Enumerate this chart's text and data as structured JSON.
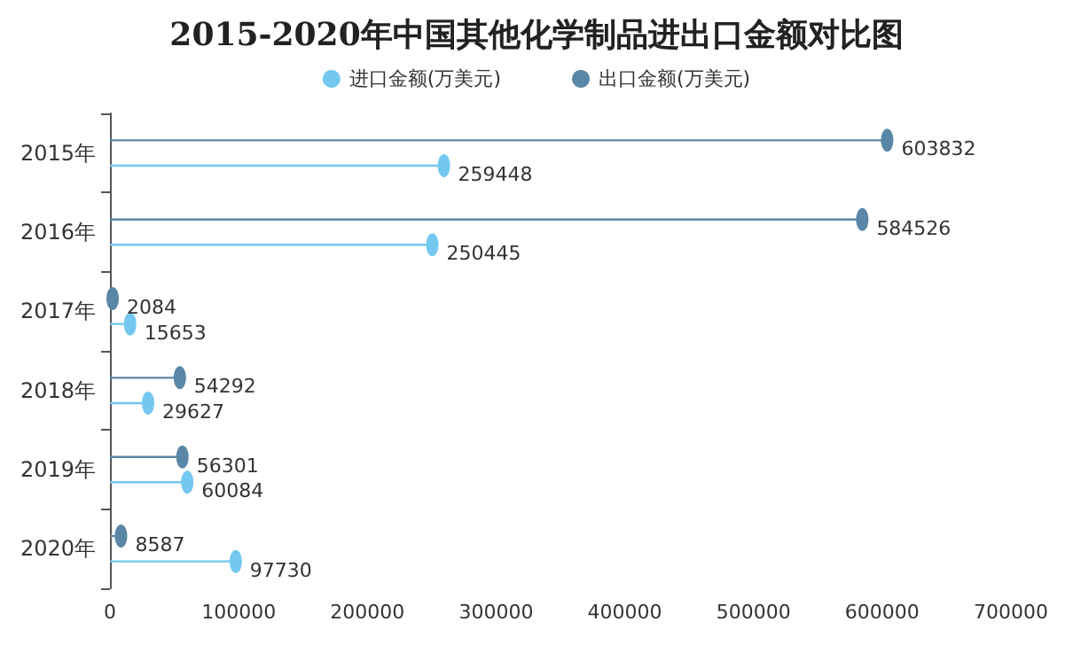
{
  "chart_data": {
    "type": "lollipop",
    "orientation": "horizontal",
    "title": "2015-2020年中国其他化学制品进出口金额对比图",
    "categories": [
      "2015年",
      "2016年",
      "2017年",
      "2018年",
      "2019年",
      "2020年"
    ],
    "series": [
      {
        "name": "进口金额(万美元)",
        "color": "#74c8f0",
        "values": [
          259448,
          250445,
          15653,
          29627,
          60084,
          97730
        ]
      },
      {
        "name": "出口金额(万美元)",
        "color": "#5a87a6",
        "values": [
          603832,
          584526,
          2084,
          54292,
          56301,
          8587
        ]
      }
    ],
    "xlim": [
      0,
      700000
    ],
    "xticks": [
      0,
      100000,
      200000,
      300000,
      400000,
      500000,
      600000,
      700000
    ],
    "grid": false,
    "legend": "top",
    "marker": "circle",
    "data_labels": true
  }
}
